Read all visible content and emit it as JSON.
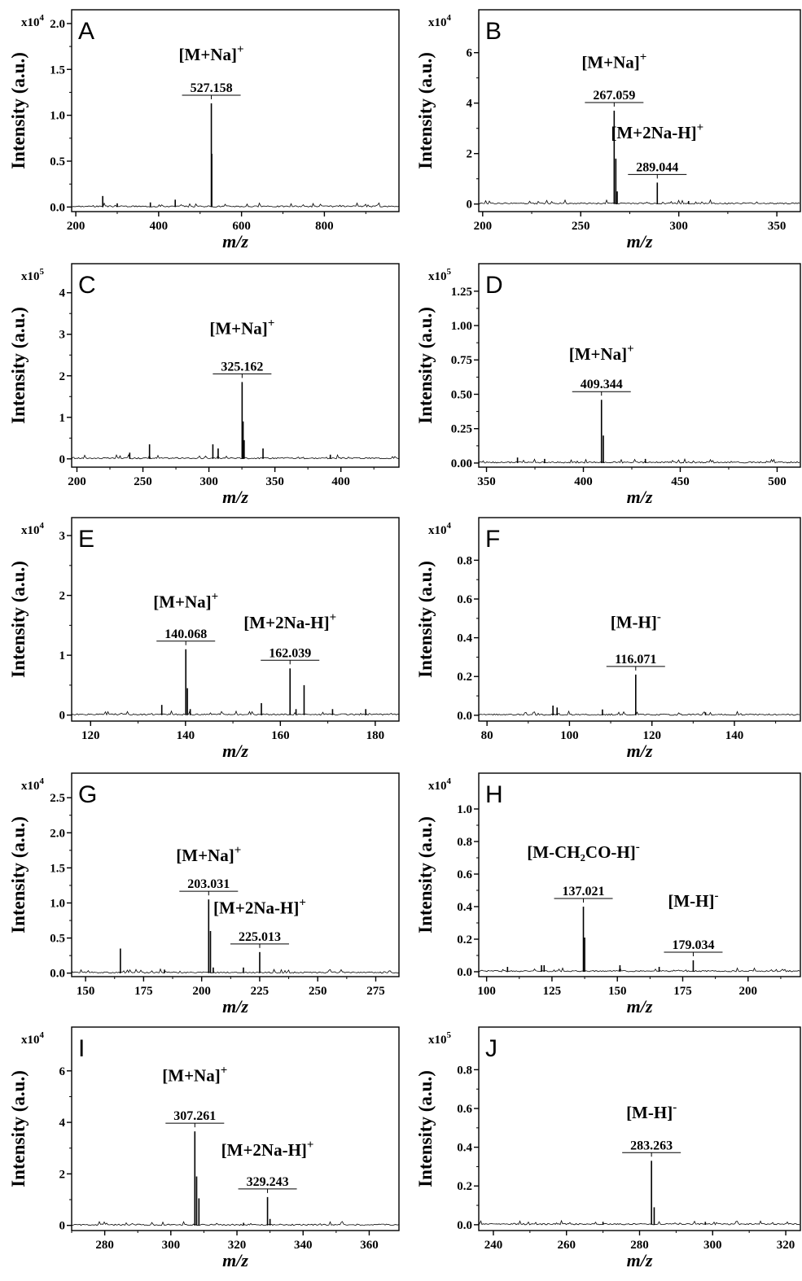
{
  "chart_data": [
    {
      "type": "line",
      "panel": "A",
      "xlabel": "m/z",
      "ylabel": "Intensity (a.u.)",
      "scale_base": "x10",
      "scale_exp": "4",
      "xlim": [
        190,
        980
      ],
      "xticks": [
        200,
        400,
        600,
        800
      ],
      "ylim": [
        -0.05,
        2.15
      ],
      "yticks": [
        "0.0",
        "0.5",
        "1.0",
        "1.5",
        "2.0"
      ],
      "peaks": [
        [
          527.158,
          1.13
        ],
        [
          528.2,
          0.58
        ],
        [
          265,
          0.12
        ],
        [
          440,
          0.08
        ],
        [
          300,
          0.04
        ],
        [
          380,
          0.05
        ]
      ],
      "annotations": [
        {
          "label": "527.158",
          "x": 527.158,
          "y": 1.13
        },
        {
          "ion": "[M+Na]",
          "sup": "+",
          "x": 527.158,
          "y": 1.6
        }
      ]
    },
    {
      "type": "line",
      "panel": "B",
      "xlabel": "m/z",
      "ylabel": "Intensity (a.u.)",
      "scale_base": "x10",
      "scale_exp": "4",
      "xlim": [
        198,
        362
      ],
      "xticks": [
        200,
        250,
        300,
        350
      ],
      "ylim": [
        -0.3,
        7.7
      ],
      "yticks": [
        "0",
        "2",
        "4",
        "6"
      ],
      "peaks": [
        [
          267.059,
          3.7
        ],
        [
          267.9,
          1.8
        ],
        [
          268.6,
          0.5
        ],
        [
          289.044,
          0.85
        ],
        [
          305,
          0.12
        ]
      ],
      "annotations": [
        {
          "label": "267.059",
          "x": 267.059,
          "y": 3.7
        },
        {
          "label": "289.044",
          "x": 289.044,
          "y": 0.85
        },
        {
          "ion": "[M+Na]",
          "sup": "+",
          "x": 267.059,
          "y": 5.4
        },
        {
          "ion": "[M+2Na-H]",
          "sup": "+",
          "x": 289.044,
          "y": 2.6
        }
      ]
    },
    {
      "type": "line",
      "panel": "C",
      "xlabel": "m/z",
      "ylabel": "Intensity (a.u.)",
      "scale_base": "x10",
      "scale_exp": "5",
      "xlim": [
        196,
        444
      ],
      "xticks": [
        200,
        250,
        300,
        350,
        400
      ],
      "ylim": [
        -0.2,
        4.7
      ],
      "yticks": [
        "0",
        "1",
        "2",
        "3",
        "4"
      ],
      "peaks": [
        [
          325.162,
          1.85
        ],
        [
          325.9,
          0.9
        ],
        [
          326.7,
          0.45
        ],
        [
          303,
          0.35
        ],
        [
          307,
          0.25
        ],
        [
          255,
          0.35
        ],
        [
          341,
          0.25
        ],
        [
          240,
          0.15
        ],
        [
          392,
          0.1
        ]
      ],
      "annotations": [
        {
          "label": "325.162",
          "x": 325.162,
          "y": 1.85
        },
        {
          "ion": "[M+Na]",
          "sup": "+",
          "x": 325.162,
          "y": 3.0
        }
      ]
    },
    {
      "type": "line",
      "panel": "D",
      "xlabel": "m/z",
      "ylabel": "Intensity (a.u.)",
      "scale_base": "x10",
      "scale_exp": "5",
      "xlim": [
        346,
        512
      ],
      "xticks": [
        350,
        400,
        450,
        500
      ],
      "ylim": [
        -0.03,
        1.45
      ],
      "yticks": [
        "0.00",
        "0.25",
        "0.50",
        "0.75",
        "1.00",
        "1.25"
      ],
      "peaks": [
        [
          409.344,
          0.46
        ],
        [
          410.3,
          0.2
        ],
        [
          366,
          0.04
        ],
        [
          380,
          0.03
        ],
        [
          432,
          0.03
        ]
      ],
      "annotations": [
        {
          "label": "409.344",
          "x": 409.344,
          "y": 0.46
        },
        {
          "ion": "[M+Na]",
          "sup": "+",
          "x": 409.344,
          "y": 0.75
        }
      ]
    },
    {
      "type": "line",
      "panel": "E",
      "xlabel": "m/z",
      "ylabel": "Intensity (a.u.)",
      "scale_base": "x10",
      "scale_exp": "4",
      "xlim": [
        116,
        185
      ],
      "xticks": [
        120,
        140,
        160,
        180
      ],
      "ylim": [
        -0.1,
        3.3
      ],
      "yticks": [
        "0",
        "1",
        "2",
        "3"
      ],
      "peaks": [
        [
          140.068,
          1.1
        ],
        [
          140.4,
          0.45
        ],
        [
          162.039,
          0.78
        ],
        [
          165,
          0.5
        ],
        [
          135,
          0.17
        ],
        [
          156,
          0.2
        ],
        [
          163.3,
          0.1
        ],
        [
          171,
          0.1
        ],
        [
          178,
          0.1
        ],
        [
          141,
          0.1
        ]
      ],
      "annotations": [
        {
          "label": "140.068",
          "x": 140.068,
          "y": 1.1
        },
        {
          "label": "162.039",
          "x": 162.039,
          "y": 0.78
        },
        {
          "ion": "[M+Na]",
          "sup": "+",
          "x": 140.068,
          "y": 1.8
        },
        {
          "ion": "[M+2Na-H]",
          "sup": "+",
          "x": 162.039,
          "y": 1.45
        }
      ]
    },
    {
      "type": "line",
      "panel": "F",
      "xlabel": "m/z",
      "ylabel": "Intensity (a.u.)",
      "scale_base": "x10",
      "scale_exp": "4",
      "xlim": [
        78,
        156
      ],
      "xticks": [
        80,
        100,
        120,
        140
      ],
      "ylim": [
        -0.03,
        1.02
      ],
      "yticks": [
        "0.0",
        "0.2",
        "0.4",
        "0.6",
        "0.8"
      ],
      "peaks": [
        [
          116.071,
          0.21
        ],
        [
          96,
          0.05
        ],
        [
          97,
          0.04
        ],
        [
          108,
          0.03
        ],
        [
          133,
          0.015
        ]
      ],
      "annotations": [
        {
          "label": "116.071",
          "x": 116.071,
          "y": 0.21
        },
        {
          "ion": "[M-H]",
          "sup": "-",
          "x": 116.071,
          "y": 0.45
        }
      ]
    },
    {
      "type": "line",
      "panel": "G",
      "xlabel": "m/z",
      "ylabel": "Intensity (a.u.)",
      "scale_base": "x10",
      "scale_exp": "4",
      "xlim": [
        144,
        285
      ],
      "xticks": [
        150,
        175,
        200,
        225,
        250,
        275
      ],
      "ylim": [
        -0.05,
        2.85
      ],
      "yticks": [
        "0.0",
        "0.5",
        "1.0",
        "1.5",
        "2.0",
        "2.5"
      ],
      "peaks": [
        [
          203.031,
          1.05
        ],
        [
          203.8,
          0.6
        ],
        [
          225.013,
          0.3
        ],
        [
          165,
          0.35
        ],
        [
          184,
          0.05
        ],
        [
          218,
          0.08
        ],
        [
          205,
          0.08
        ]
      ],
      "annotations": [
        {
          "label": "203.031",
          "x": 203.031,
          "y": 1.05
        },
        {
          "label": "225.013",
          "x": 225.013,
          "y": 0.3
        },
        {
          "ion": "[M+Na]",
          "sup": "+",
          "x": 203.031,
          "y": 1.6
        },
        {
          "ion": "[M+2Na-H]",
          "sup": "+",
          "x": 225.013,
          "y": 0.85
        }
      ]
    },
    {
      "type": "line",
      "panel": "H",
      "xlabel": "m/z",
      "ylabel": "Intensity (a.u.)",
      "scale_base": "x10",
      "scale_exp": "4",
      "xlim": [
        97,
        220
      ],
      "xticks": [
        100,
        125,
        150,
        175,
        200
      ],
      "ylim": [
        -0.03,
        1.22
      ],
      "yticks": [
        "0.0",
        "0.2",
        "0.4",
        "0.6",
        "0.8",
        "1.0"
      ],
      "peaks": [
        [
          137.021,
          0.4
        ],
        [
          137.5,
          0.21
        ],
        [
          179.034,
          0.07
        ],
        [
          108,
          0.03
        ],
        [
          121,
          0.04
        ],
        [
          122,
          0.04
        ],
        [
          151,
          0.04
        ],
        [
          166,
          0.03
        ]
      ],
      "annotations": [
        {
          "label": "137.021",
          "x": 137.021,
          "y": 0.4
        },
        {
          "label": "179.034",
          "x": 179.034,
          "y": 0.07
        },
        {
          "ion": "[M-CH₂CO-H]",
          "sup": "-",
          "x": 137.021,
          "y": 0.7
        },
        {
          "ion": "[M-H]",
          "sup": "-",
          "x": 179.034,
          "y": 0.4
        }
      ]
    },
    {
      "type": "line",
      "panel": "I",
      "xlabel": "m/z",
      "ylabel": "Intensity (a.u.)",
      "scale_base": "x10",
      "scale_exp": "4",
      "xlim": [
        270,
        369
      ],
      "xticks": [
        280,
        300,
        320,
        340,
        360
      ],
      "ylim": [
        -0.2,
        7.7
      ],
      "yticks": [
        "0",
        "2",
        "4",
        "6"
      ],
      "peaks": [
        [
          307.261,
          3.65
        ],
        [
          307.8,
          1.9
        ],
        [
          308.5,
          1.05
        ],
        [
          329.243,
          1.1
        ],
        [
          330,
          0.25
        ],
        [
          322,
          0.1
        ]
      ],
      "annotations": [
        {
          "label": "307.261",
          "x": 307.261,
          "y": 3.65
        },
        {
          "label": "329.243",
          "x": 329.243,
          "y": 1.1
        },
        {
          "ion": "[M+Na]",
          "sup": "+",
          "x": 307.261,
          "y": 5.6
        },
        {
          "ion": "[M+2Na-H]",
          "sup": "+",
          "x": 329.243,
          "y": 2.7
        }
      ]
    },
    {
      "type": "line",
      "panel": "J",
      "xlabel": "m/z",
      "ylabel": "Intensity (a.u.)",
      "scale_base": "x10",
      "scale_exp": "5",
      "xlim": [
        236,
        324
      ],
      "xticks": [
        240,
        260,
        280,
        300,
        320
      ],
      "ylim": [
        -0.03,
        1.02
      ],
      "yticks": [
        "0.0",
        "0.2",
        "0.4",
        "0.6",
        "0.8"
      ],
      "peaks": [
        [
          283.263,
          0.33
        ],
        [
          284,
          0.09
        ],
        [
          270,
          0.015
        ],
        [
          298,
          0.015
        ]
      ],
      "annotations": [
        {
          "label": "283.263",
          "x": 283.263,
          "y": 0.33
        },
        {
          "ion": "[M-H]",
          "sup": "-",
          "x": 283.263,
          "y": 0.55
        }
      ]
    }
  ]
}
